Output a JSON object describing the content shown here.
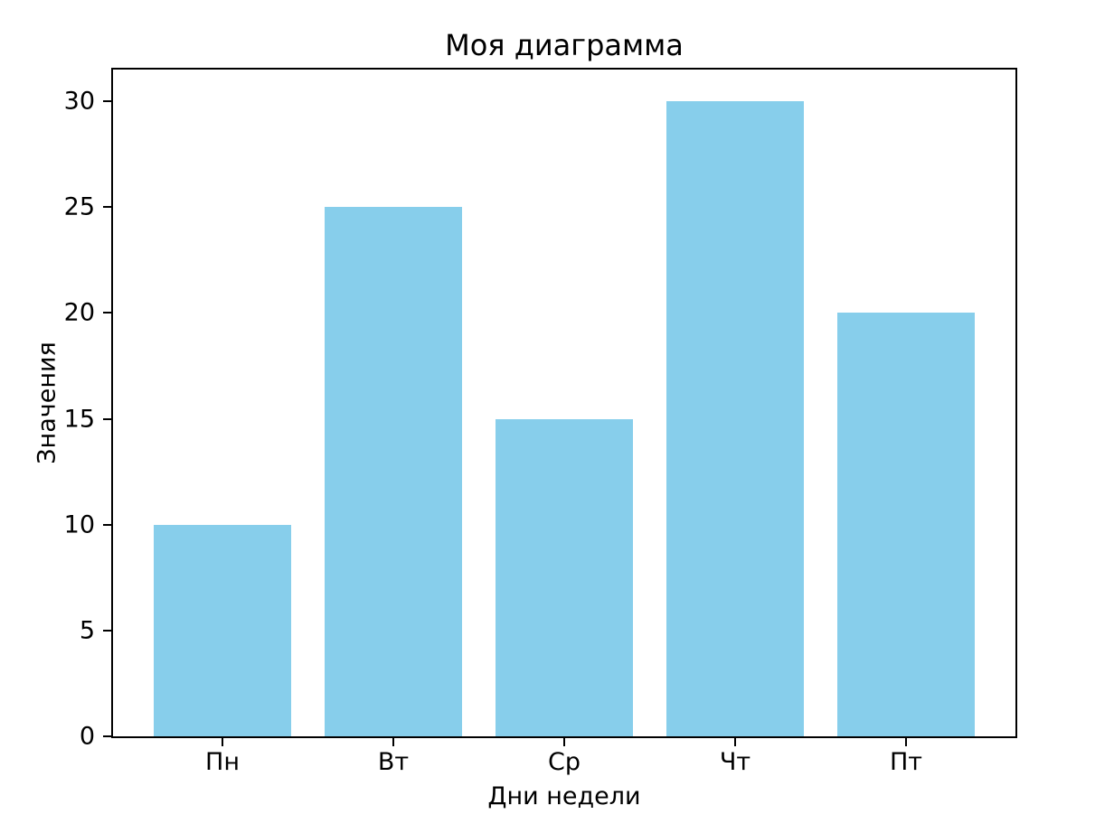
{
  "chart_data": {
    "type": "bar",
    "title": "Моя диаграмма",
    "xlabel": "Дни недели",
    "ylabel": "Значения",
    "categories": [
      "Пн",
      "Вт",
      "Ср",
      "Чт",
      "Пт"
    ],
    "values": [
      10,
      25,
      15,
      30,
      20
    ],
    "yticks": [
      0,
      5,
      10,
      15,
      20,
      25,
      30
    ],
    "ylim": [
      0,
      31.5
    ],
    "bar_color": "#87CEEB",
    "axis_color": "#000000",
    "background_color": "#ffffff",
    "grid": false,
    "legend_position": "none",
    "bar_width_fraction": 0.8
  }
}
